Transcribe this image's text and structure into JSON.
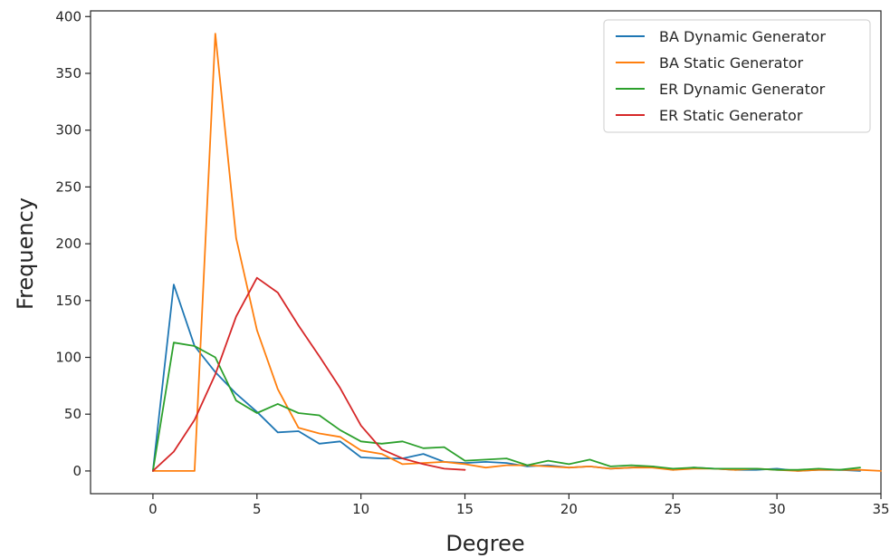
{
  "chart_data": {
    "type": "line",
    "title": "",
    "xlabel": "Degree",
    "ylabel": "Frequency",
    "xlim": [
      -3,
      35
    ],
    "ylim": [
      -20,
      405
    ],
    "xticks": [
      0,
      5,
      10,
      15,
      20,
      25,
      30,
      35
    ],
    "yticks": [
      0,
      50,
      100,
      150,
      200,
      250,
      300,
      350,
      400
    ],
    "grid": false,
    "legend": "top-right",
    "series": [
      {
        "name": "BA Dynamic Generator",
        "color": "#1f77b4",
        "x": [
          0,
          1,
          2,
          3,
          4,
          5,
          6,
          7,
          8,
          9,
          10,
          11,
          12,
          13,
          14,
          15,
          16,
          17,
          18,
          19,
          20,
          21,
          22,
          23,
          24,
          25,
          26,
          27,
          28,
          29,
          30,
          31,
          32,
          33,
          34
        ],
        "y": [
          0,
          164,
          110,
          87,
          68,
          52,
          34,
          35,
          24,
          26,
          12,
          11,
          11,
          15,
          8,
          7,
          8,
          7,
          4,
          5,
          3,
          4,
          2,
          3,
          4,
          1,
          3,
          2,
          1,
          1,
          2,
          0,
          1,
          1,
          0
        ]
      },
      {
        "name": "BA Static Generator",
        "color": "#ff7f0e",
        "x": [
          0,
          1,
          2,
          3,
          4,
          5,
          6,
          7,
          8,
          9,
          10,
          11,
          12,
          13,
          14,
          15,
          16,
          17,
          18,
          19,
          20,
          21,
          22,
          23,
          24,
          25,
          26,
          27,
          28,
          29,
          30,
          31,
          32,
          33,
          34,
          35
        ],
        "y": [
          0,
          0,
          0,
          385,
          205,
          124,
          72,
          38,
          33,
          30,
          18,
          15,
          6,
          7,
          8,
          6,
          3,
          5,
          5,
          4,
          3,
          4,
          2,
          3,
          3,
          1,
          2,
          2,
          1,
          2,
          1,
          0,
          1,
          1,
          1,
          0
        ]
      },
      {
        "name": "ER Dynamic Generator",
        "color": "#2ca02c",
        "x": [
          0,
          1,
          2,
          3,
          4,
          5,
          6,
          7,
          8,
          9,
          10,
          11,
          12,
          13,
          14,
          15,
          16,
          17,
          18,
          19,
          20,
          21,
          22,
          23,
          24,
          25,
          26,
          27,
          28,
          29,
          30,
          31,
          32,
          33,
          34
        ],
        "y": [
          0,
          113,
          110,
          100,
          62,
          51,
          59,
          51,
          49,
          36,
          26,
          24,
          26,
          20,
          21,
          9,
          10,
          11,
          5,
          9,
          6,
          10,
          4,
          5,
          4,
          2,
          3,
          2,
          2,
          2,
          1,
          1,
          2,
          1,
          3
        ]
      },
      {
        "name": "ER Static Generator",
        "color": "#d62728",
        "x": [
          0,
          1,
          2,
          3,
          4,
          5,
          6,
          7,
          8,
          9,
          10,
          11,
          12,
          13,
          14,
          15
        ],
        "y": [
          0,
          17,
          45,
          85,
          136,
          170,
          157,
          128,
          101,
          73,
          40,
          19,
          11,
          6,
          2,
          1
        ]
      }
    ]
  }
}
